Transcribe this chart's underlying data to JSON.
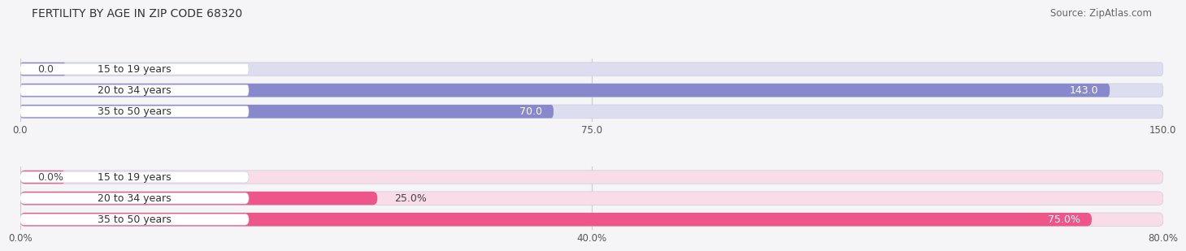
{
  "title": "FERTILITY BY AGE IN ZIP CODE 68320",
  "source": "Source: ZipAtlas.com",
  "top_chart": {
    "categories": [
      "15 to 19 years",
      "20 to 34 years",
      "35 to 50 years"
    ],
    "values": [
      0.0,
      143.0,
      70.0
    ],
    "xlim": [
      0,
      150.0
    ],
    "xticks": [
      0.0,
      75.0,
      150.0
    ],
    "xtick_labels": [
      "0.0",
      "75.0",
      "150.0"
    ],
    "bar_color": "#8888cc",
    "bar_bg_color": "#ddddf0",
    "value_labels": [
      "0.0",
      "143.0",
      "70.0"
    ],
    "label_inside": [
      false,
      true,
      true
    ]
  },
  "bottom_chart": {
    "categories": [
      "15 to 19 years",
      "20 to 34 years",
      "35 to 50 years"
    ],
    "values": [
      0.0,
      25.0,
      75.0
    ],
    "xlim": [
      0,
      80.0
    ],
    "xticks": [
      0.0,
      40.0,
      80.0
    ],
    "xtick_labels": [
      "0.0%",
      "40.0%",
      "80.0%"
    ],
    "bar_color": "#ee5588",
    "bar_bg_color": "#f8dde8",
    "value_labels": [
      "0.0%",
      "25.0%",
      "75.0%"
    ],
    "label_inside": [
      false,
      false,
      true
    ]
  },
  "title_fontsize": 10,
  "source_fontsize": 8.5,
  "value_fontsize": 9,
  "tick_fontsize": 8.5,
  "category_fontsize": 9,
  "fig_bg_color": "#f5f5f8"
}
